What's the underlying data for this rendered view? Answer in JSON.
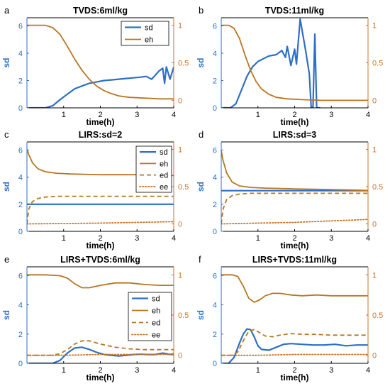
{
  "colors": {
    "sd": "#2e6fc4",
    "eh": "#b87622",
    "ed": "#b87622",
    "ee": "#c8742a",
    "axis": "#000000",
    "right_axis": "#c8742a",
    "left_axis": "#2e6fc4"
  },
  "chart_data": [
    {
      "letter": "a",
      "title": "TVDS:6ml/kg",
      "type": "line",
      "xlabel": "time(h)",
      "ylabel": "sd",
      "xlim": [
        0,
        4
      ],
      "ylim_left": [
        0,
        6.6
      ],
      "ylim_right": [
        -0.1,
        1.1
      ],
      "xticks": [
        "1",
        "2",
        "3",
        "4"
      ],
      "yticks_left": [
        "0",
        "2",
        "4",
        "6"
      ],
      "yticks_right": [
        "0",
        "0.5",
        "1"
      ],
      "legend": {
        "position": "top-right",
        "entries": [
          "sd",
          "eh"
        ]
      },
      "series": [
        {
          "name": "sd",
          "axis": "left",
          "style": "solid",
          "width": 2.2,
          "x": [
            0,
            0.5,
            0.7,
            0.9,
            1.1,
            1.3,
            1.5,
            1.7,
            1.9,
            2.1,
            2.3,
            2.5,
            2.7,
            2.9,
            3.1,
            3.25,
            3.4,
            3.5,
            3.6,
            3.7,
            3.75,
            3.8,
            3.9,
            4.0
          ],
          "y": [
            0,
            0,
            0.15,
            0.6,
            1.0,
            1.4,
            1.6,
            1.8,
            1.9,
            2.0,
            2.05,
            2.1,
            2.15,
            2.2,
            2.25,
            2.3,
            2.1,
            2.4,
            2.7,
            2.9,
            1.8,
            3.0,
            2.1,
            3.0
          ]
        },
        {
          "name": "eh",
          "axis": "right",
          "style": "solid",
          "width": 1.8,
          "x": [
            0,
            0.5,
            0.7,
            0.9,
            1.1,
            1.3,
            1.5,
            1.7,
            1.9,
            2.1,
            2.3,
            2.5,
            2.8,
            3.2,
            3.6,
            4.0
          ],
          "y": [
            1.0,
            1.0,
            0.97,
            0.88,
            0.72,
            0.55,
            0.4,
            0.28,
            0.19,
            0.13,
            0.09,
            0.06,
            0.04,
            0.03,
            0.02,
            0.02
          ]
        }
      ]
    },
    {
      "letter": "b",
      "title": "TVDS:11ml/kg",
      "type": "line",
      "xlabel": "time(h)",
      "ylabel": "sd",
      "xlim": [
        0,
        4
      ],
      "ylim_left": [
        0,
        6.6
      ],
      "ylim_right": [
        -0.1,
        1.1
      ],
      "xticks": [
        "1",
        "2",
        "3",
        "4"
      ],
      "yticks_left": [
        "0",
        "2",
        "4",
        "6"
      ],
      "yticks_right": [
        "0",
        "0.5",
        "1"
      ],
      "legend": null,
      "series": [
        {
          "name": "sd",
          "axis": "left",
          "style": "solid",
          "width": 2.2,
          "x": [
            0,
            0.25,
            0.4,
            0.55,
            0.7,
            0.85,
            1.0,
            1.15,
            1.3,
            1.5,
            1.65,
            1.75,
            1.8,
            1.9,
            2.0,
            2.05,
            2.15,
            2.3,
            2.4,
            2.45,
            2.5,
            2.55,
            2.6,
            2.65,
            2.7
          ],
          "y": [
            0,
            0,
            0.3,
            1.3,
            2.3,
            3.0,
            3.4,
            3.6,
            3.8,
            3.9,
            4.2,
            3.7,
            4.5,
            3.1,
            4.3,
            3.2,
            6.5,
            4.2,
            2.5,
            0.05,
            0.05,
            5.4,
            0.0,
            0.0,
            0.0
          ]
        },
        {
          "name": "eh",
          "axis": "right",
          "style": "solid",
          "width": 1.8,
          "x": [
            0,
            0.2,
            0.35,
            0.5,
            0.65,
            0.8,
            0.95,
            1.1,
            1.3,
            1.5,
            1.8,
            2.2,
            2.7,
            3.2,
            4.0
          ],
          "y": [
            1.0,
            1.0,
            0.96,
            0.82,
            0.6,
            0.4,
            0.25,
            0.15,
            0.08,
            0.04,
            0.02,
            0.01,
            0.0,
            0.0,
            0.0
          ]
        }
      ]
    },
    {
      "letter": "c",
      "title": "LIRS:sd=2",
      "type": "line",
      "xlabel": "time(h)",
      "ylabel": "sd",
      "xlim": [
        0,
        4
      ],
      "ylim_left": [
        0,
        6.6
      ],
      "ylim_right": [
        -0.1,
        1.1
      ],
      "xticks": [
        "1",
        "2",
        "3",
        "4"
      ],
      "yticks_left": [
        "0",
        "2",
        "4",
        "6"
      ],
      "yticks_right": [
        "0",
        "0.5",
        "1"
      ],
      "legend": {
        "position": "top-right",
        "entries": [
          "sd",
          "eh",
          "ed",
          "ee"
        ]
      },
      "series": [
        {
          "name": "sd",
          "axis": "left",
          "style": "solid",
          "width": 2.2,
          "x": [
            0,
            4
          ],
          "y": [
            2.0,
            2.0
          ]
        },
        {
          "name": "eh",
          "axis": "right",
          "style": "solid",
          "width": 1.8,
          "x": [
            0,
            0.05,
            0.15,
            0.3,
            0.5,
            0.8,
            1.2,
            2.0,
            3.0,
            4.0
          ],
          "y": [
            1.0,
            0.93,
            0.82,
            0.74,
            0.7,
            0.68,
            0.67,
            0.66,
            0.66,
            0.65
          ]
        },
        {
          "name": "ed",
          "axis": "right",
          "style": "dashed",
          "width": 1.8,
          "x": [
            0,
            0.05,
            0.15,
            0.3,
            0.5,
            0.8,
            1.2,
            2.0,
            3.0,
            4.0
          ],
          "y": [
            0.0,
            0.2,
            0.3,
            0.34,
            0.36,
            0.37,
            0.37,
            0.37,
            0.37,
            0.37
          ]
        },
        {
          "name": "ee",
          "axis": "right",
          "style": "dotted",
          "width": 1.8,
          "x": [
            0,
            1.0,
            2.0,
            3.0,
            4.0
          ],
          "y": [
            0.0,
            0.005,
            0.01,
            0.02,
            0.03
          ]
        }
      ]
    },
    {
      "letter": "d",
      "title": "LIRS:sd=3",
      "type": "line",
      "xlabel": "time(h)",
      "ylabel": "sd",
      "xlim": [
        0,
        4
      ],
      "ylim_left": [
        0,
        6.6
      ],
      "ylim_right": [
        -0.1,
        1.1
      ],
      "xticks": [
        "1",
        "2",
        "3",
        "4"
      ],
      "yticks_left": [
        "0",
        "2",
        "4",
        "6"
      ],
      "yticks_right": [
        "0",
        "0.5",
        "1"
      ],
      "legend": null,
      "series": [
        {
          "name": "sd",
          "axis": "left",
          "style": "solid",
          "width": 2.2,
          "x": [
            0,
            4
          ],
          "y": [
            3.0,
            3.0
          ]
        },
        {
          "name": "eh",
          "axis": "right",
          "style": "solid",
          "width": 1.8,
          "x": [
            0,
            0.05,
            0.15,
            0.3,
            0.5,
            0.8,
            1.2,
            2.0,
            3.0,
            4.0
          ],
          "y": [
            0.98,
            0.85,
            0.68,
            0.56,
            0.51,
            0.49,
            0.48,
            0.47,
            0.46,
            0.45
          ]
        },
        {
          "name": "ed",
          "axis": "right",
          "style": "dashed",
          "width": 1.8,
          "x": [
            0,
            0.05,
            0.15,
            0.3,
            0.5,
            0.8,
            1.2,
            2.0,
            3.0,
            4.0
          ],
          "y": [
            0.0,
            0.2,
            0.33,
            0.38,
            0.4,
            0.41,
            0.41,
            0.41,
            0.41,
            0.41
          ]
        },
        {
          "name": "ee",
          "axis": "right",
          "style": "dotted",
          "width": 1.8,
          "x": [
            0,
            1.0,
            2.0,
            3.0,
            4.0
          ],
          "y": [
            0.0,
            0.01,
            0.02,
            0.04,
            0.06
          ]
        }
      ]
    },
    {
      "letter": "e",
      "title": "LIRS+TVDS:6ml/kg",
      "type": "line",
      "xlabel": "time(h)",
      "ylabel": "sd",
      "xlim": [
        0,
        4
      ],
      "ylim_left": [
        0,
        6.6
      ],
      "ylim_right": [
        -0.1,
        1.1
      ],
      "xticks": [
        "1",
        "2",
        "3",
        "4"
      ],
      "yticks_left": [
        "0",
        "2",
        "4",
        "6"
      ],
      "yticks_right": [
        "0",
        "0.5",
        "1"
      ],
      "legend": {
        "position": "right",
        "entries": [
          "sd",
          "eh",
          "ed",
          "ee"
        ]
      },
      "series": [
        {
          "name": "sd",
          "axis": "left",
          "style": "solid",
          "width": 2.2,
          "x": [
            0,
            0.7,
            0.9,
            1.1,
            1.3,
            1.5,
            1.7,
            1.9,
            2.1,
            2.3,
            2.5,
            2.7,
            2.9,
            3.1,
            3.3,
            3.5,
            3.7,
            3.9,
            4.0
          ],
          "y": [
            0,
            0,
            0.2,
            0.7,
            1.05,
            1.1,
            0.95,
            0.75,
            0.6,
            0.55,
            0.5,
            0.55,
            0.6,
            0.62,
            0.6,
            0.6,
            0.7,
            0.6,
            0.65
          ]
        },
        {
          "name": "eh",
          "axis": "right",
          "style": "solid",
          "width": 1.8,
          "x": [
            0,
            0.5,
            0.9,
            1.1,
            1.3,
            1.5,
            1.7,
            2.0,
            2.4,
            2.8,
            3.2,
            3.6,
            4.0
          ],
          "y": [
            1.0,
            1.0,
            0.99,
            0.96,
            0.89,
            0.84,
            0.84,
            0.87,
            0.9,
            0.9,
            0.88,
            0.87,
            0.87
          ]
        },
        {
          "name": "ed",
          "axis": "right",
          "style": "dashed",
          "width": 1.8,
          "x": [
            0,
            0.7,
            0.9,
            1.1,
            1.3,
            1.5,
            1.7,
            2.0,
            2.4,
            2.8,
            3.2,
            3.6,
            4.0
          ],
          "y": [
            0.0,
            0.0,
            0.02,
            0.07,
            0.14,
            0.18,
            0.18,
            0.14,
            0.1,
            0.08,
            0.07,
            0.07,
            0.07
          ]
        },
        {
          "name": "ee",
          "axis": "right",
          "style": "dotted",
          "width": 1.8,
          "x": [
            0,
            1.0,
            2.0,
            3.0,
            4.0
          ],
          "y": [
            0.0,
            0.0,
            0.01,
            0.01,
            0.01
          ]
        }
      ]
    },
    {
      "letter": "f",
      "title": "LIRS+TVDS:11ml/kg",
      "type": "line",
      "xlabel": "time(h)",
      "ylabel": "sd",
      "xlim": [
        0,
        4
      ],
      "ylim_left": [
        0,
        6.6
      ],
      "ylim_right": [
        -0.1,
        1.1
      ],
      "xticks": [
        "1",
        "2",
        "3",
        "4"
      ],
      "yticks_left": [
        "0",
        "2",
        "4",
        "6"
      ],
      "yticks_right": [
        "0",
        "0.5",
        "1"
      ],
      "legend": null,
      "series": [
        {
          "name": "sd",
          "axis": "left",
          "style": "solid",
          "width": 2.2,
          "x": [
            0,
            0.2,
            0.35,
            0.5,
            0.6,
            0.7,
            0.8,
            0.9,
            1.0,
            1.1,
            1.3,
            1.5,
            1.7,
            1.9,
            2.2,
            2.5,
            2.8,
            3.1,
            3.4,
            3.7,
            4.0
          ],
          "y": [
            0,
            0,
            0.4,
            1.4,
            2.0,
            2.35,
            2.3,
            1.8,
            1.2,
            0.95,
            0.9,
            1.1,
            1.3,
            1.35,
            1.3,
            1.25,
            1.25,
            1.3,
            1.2,
            1.25,
            1.25
          ]
        },
        {
          "name": "eh",
          "axis": "right",
          "style": "solid",
          "width": 1.8,
          "x": [
            0,
            0.3,
            0.45,
            0.6,
            0.75,
            0.9,
            1.05,
            1.2,
            1.4,
            1.6,
            1.9,
            2.2,
            2.6,
            3.0,
            3.5,
            4.0
          ],
          "y": [
            1.0,
            1.0,
            0.98,
            0.86,
            0.71,
            0.66,
            0.69,
            0.74,
            0.77,
            0.77,
            0.75,
            0.74,
            0.75,
            0.74,
            0.74,
            0.74
          ]
        },
        {
          "name": "ed",
          "axis": "right",
          "style": "dashed",
          "width": 1.8,
          "x": [
            0,
            0.3,
            0.45,
            0.6,
            0.75,
            0.9,
            1.05,
            1.2,
            1.4,
            1.6,
            1.9,
            2.2,
            2.6,
            3.0,
            3.5,
            4.0
          ],
          "y": [
            0.0,
            0.0,
            0.04,
            0.18,
            0.3,
            0.32,
            0.28,
            0.24,
            0.23,
            0.25,
            0.27,
            0.26,
            0.26,
            0.25,
            0.25,
            0.25
          ]
        },
        {
          "name": "ee",
          "axis": "right",
          "style": "dotted",
          "width": 1.8,
          "x": [
            0,
            1.0,
            2.0,
            3.0,
            4.0
          ],
          "y": [
            0.0,
            0.0,
            0.01,
            0.01,
            0.01
          ]
        }
      ]
    }
  ]
}
